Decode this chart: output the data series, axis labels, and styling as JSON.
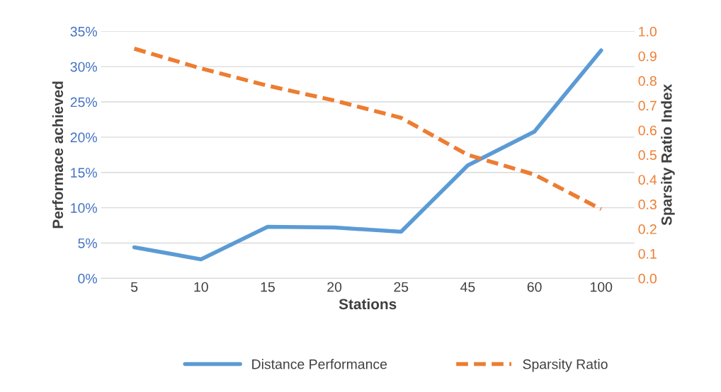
{
  "chart_data": {
    "type": "line",
    "xlabel": "Stations",
    "ylabel": "Performace achieved",
    "y2label": "Sparsity Ratio Index",
    "categories": [
      "5",
      "10",
      "15",
      "20",
      "25",
      "45",
      "60",
      "100"
    ],
    "series": [
      {
        "name": "Distance Performance",
        "color": "#5b9bd5",
        "line_style": "solid",
        "values": [
          4.4,
          2.7,
          7.3,
          7.2,
          6.6,
          16.0,
          20.8,
          32.3
        ]
      },
      {
        "name": "Sparsity Ratio",
        "color": "#ed7d31",
        "line_style": "dashed",
        "axis": "y2",
        "values": [
          0.93,
          0.85,
          0.78,
          0.72,
          0.65,
          0.5,
          0.42,
          0.28
        ]
      }
    ],
    "ylim": [
      0,
      35
    ],
    "yticks": [
      {
        "value": 0,
        "label": "0%"
      },
      {
        "value": 5,
        "label": "5%"
      },
      {
        "value": 10,
        "label": "10%"
      },
      {
        "value": 15,
        "label": "15%"
      },
      {
        "value": 20,
        "label": "20%"
      },
      {
        "value": 25,
        "label": "25%"
      },
      {
        "value": 30,
        "label": "30%"
      },
      {
        "value": 35,
        "label": "35%"
      }
    ],
    "y2lim": [
      0,
      1
    ],
    "y2ticks": [
      {
        "value": 0,
        "label": "0.0"
      },
      {
        "value": 0.1,
        "label": "0.1"
      },
      {
        "value": 0.2,
        "label": "0.2"
      },
      {
        "value": 0.3,
        "label": "0.3"
      },
      {
        "value": 0.4,
        "label": "0.4"
      },
      {
        "value": 0.5,
        "label": "0.5"
      },
      {
        "value": 0.6,
        "label": "0.6"
      },
      {
        "value": 0.7,
        "label": "0.7"
      },
      {
        "value": 0.8,
        "label": "0.8"
      },
      {
        "value": 0.9,
        "label": "0.9"
      },
      {
        "value": 1.0,
        "label": "1.0"
      }
    ],
    "grid": "y",
    "legend": "bottom",
    "marker": "none"
  }
}
